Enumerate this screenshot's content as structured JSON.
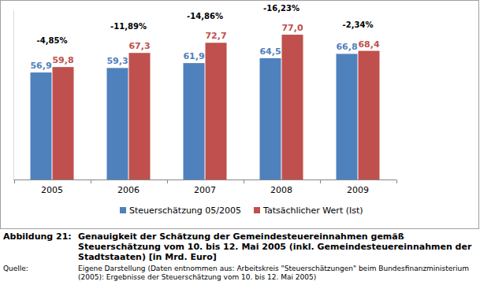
{
  "chart_data": {
    "type": "bar",
    "categories": [
      "2005",
      "2006",
      "2007",
      "2008",
      "2009"
    ],
    "series": [
      {
        "name": "Steuerschätzung 05/2005",
        "color": "#4f81bd",
        "values": [
          56.9,
          59.3,
          61.9,
          64.5,
          66.8
        ],
        "value_labels": [
          "56,9",
          "59,3",
          "61,9",
          "64,5",
          "66,8"
        ]
      },
      {
        "name": "Tatsächlicher Wert (Ist)",
        "color": "#c0504d",
        "values": [
          59.8,
          67.3,
          72.7,
          77.0,
          68.4
        ],
        "value_labels": [
          "59,8",
          "67,3",
          "72,7",
          "77,0",
          "68,4"
        ]
      }
    ],
    "annotations": [
      "-4,85%",
      "-11,89%",
      "-14,86%",
      "-16,23%",
      "-2,34%"
    ],
    "ylim": [
      0,
      90
    ],
    "yticks": [],
    "tick_labels": "x",
    "data_labels": true,
    "legend": "bottom",
    "grid": false
  },
  "figure": {
    "label": "Abbildung 21:",
    "caption": "Genauigkeit der Schätzung der Gemeindesteuereinnahmen gemäß Steuerschätzung vom 10. bis 12. Mai 2005 (inkl. Gemeindesteuereinnahmen der Stadtstaaten) [in Mrd. Euro]",
    "source_label": "Quelle:",
    "source": "Eigene Darstellung (Daten entnommen aus: Arbeitskreis \"Steuerschätzungen\" beim Bundesfinanzministerium (2005): Ergebnisse der Steuerschätzung vom 10. bis 12. Mai 2005)"
  }
}
